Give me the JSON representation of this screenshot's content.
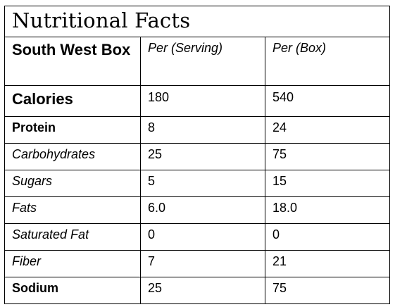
{
  "title": "Nutritional Facts",
  "header": {
    "product": "South West Box",
    "per_serving": "Per (Serving)",
    "per_box": "Per (Box)"
  },
  "rows": [
    {
      "label": "Calories",
      "per_serving": "180",
      "per_box": "540",
      "style": "bold-large"
    },
    {
      "label": "Protein",
      "per_serving": "8",
      "per_box": "24",
      "style": "bold"
    },
    {
      "label": "Carbohydrates",
      "per_serving": "25",
      "per_box": "75",
      "style": "italic"
    },
    {
      "label": "Sugars",
      "per_serving": "5",
      "per_box": "15",
      "style": "italic"
    },
    {
      "label": "Fats",
      "per_serving": "6.0",
      "per_box": "18.0",
      "style": "italic"
    },
    {
      "label": "Saturated Fat",
      "per_serving": "0",
      "per_box": "0",
      "style": "italic"
    },
    {
      "label": "Fiber",
      "per_serving": "7",
      "per_box": "21",
      "style": "italic"
    },
    {
      "label": "Sodium",
      "per_serving": "25",
      "per_box": "75",
      "style": "bold"
    }
  ]
}
